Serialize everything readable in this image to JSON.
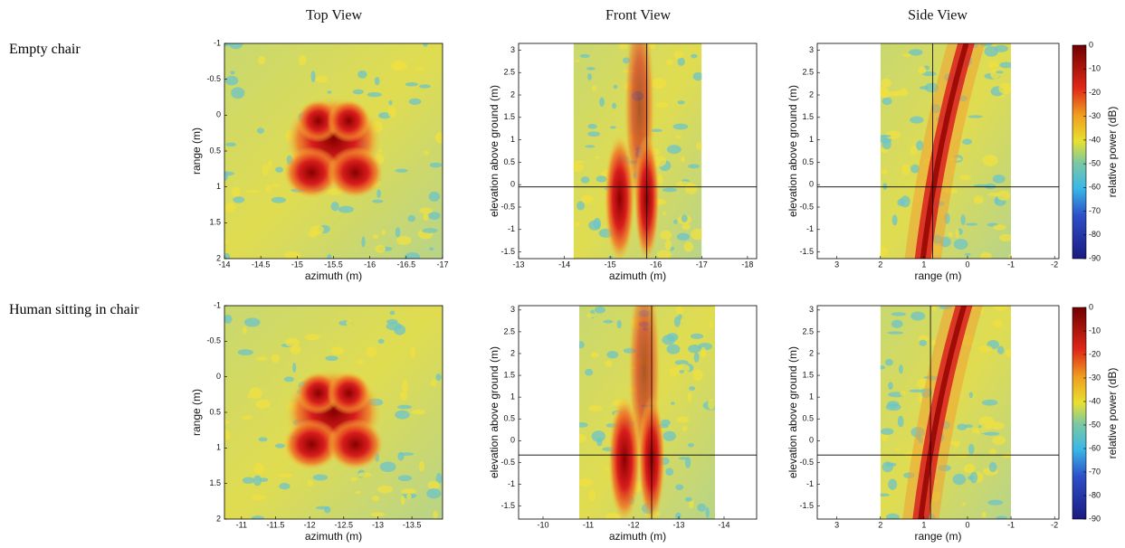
{
  "column_titles": [
    "Top View",
    "Front View",
    "Side View"
  ],
  "row_labels": [
    "Empty chair",
    "Human sitting in chair"
  ],
  "chart_data": [
    {
      "type": "heatmap",
      "xlabel": "azimuth (m)",
      "ylabel": "range (m)",
      "xlim": [
        -14,
        -17
      ],
      "xticks": [
        -14,
        -14.5,
        -15,
        -15.5,
        -16,
        -16.5,
        -17
      ],
      "ylim": [
        2,
        -1
      ],
      "yticks": [
        -1,
        -0.5,
        0,
        0.5,
        1,
        1.5,
        2
      ],
      "image_x": [
        -14,
        -17
      ]
    },
    {
      "type": "heatmap",
      "xlabel": "azimuth (m)",
      "ylabel": "elevation above ground (m)",
      "xlim": [
        -13,
        -18.2
      ],
      "xticks": [
        -13,
        -14,
        -15,
        -16,
        -17,
        -18
      ],
      "ylim": [
        -1.65,
        3.15
      ],
      "yticks": [
        -1.5,
        -1,
        -0.5,
        0,
        0.5,
        1,
        1.5,
        2,
        2.5,
        3
      ],
      "image_x": [
        -14.2,
        -17
      ],
      "crosshair": {
        "x": -15.8,
        "y": -0.05
      }
    },
    {
      "type": "heatmap",
      "xlabel": "range (m)",
      "ylabel": "elevation above ground (m)",
      "xlim": [
        3.45,
        -2.1
      ],
      "xticks": [
        3,
        2,
        1,
        0,
        -1,
        -2
      ],
      "ylim": [
        -1.65,
        3.15
      ],
      "yticks": [
        -1.5,
        -1,
        -0.5,
        0,
        0.5,
        1,
        1.5,
        2,
        2.5,
        3
      ],
      "image_x": [
        2,
        -1
      ],
      "crosshair": {
        "x": 0.8,
        "y": -0.05
      }
    },
    {
      "type": "heatmap",
      "xlabel": "azimuth (m)",
      "ylabel": "range (m)",
      "xlim": [
        -10.75,
        -13.95
      ],
      "xticks": [
        -11,
        -11.5,
        -12,
        -12.5,
        -13,
        -13.5
      ],
      "ylim": [
        2,
        -1
      ],
      "yticks": [
        -1,
        -0.5,
        0,
        0.5,
        1,
        1.5,
        2
      ],
      "image_x": [
        -10.75,
        -13.95
      ]
    },
    {
      "type": "heatmap",
      "xlabel": "azimuth (m)",
      "ylabel": "elevation above ground (m)",
      "xlim": [
        -9.46,
        -14.72
      ],
      "xticks": [
        -10,
        -11,
        -12,
        -13,
        -14
      ],
      "ylim": [
        -1.8,
        3.1
      ],
      "yticks": [
        -1.5,
        -1,
        -0.5,
        0,
        0.5,
        1,
        1.5,
        2,
        2.5,
        3
      ],
      "image_x": [
        -10.8,
        -13.8
      ],
      "crosshair": {
        "x": -12.4,
        "y": -0.33
      }
    },
    {
      "type": "heatmap",
      "xlabel": "range (m)",
      "ylabel": "elevation above ground (m)",
      "xlim": [
        3.45,
        -2.1
      ],
      "xticks": [
        3,
        2,
        1,
        0,
        -1,
        -2
      ],
      "ylim": [
        -1.8,
        3.1
      ],
      "yticks": [
        -1.5,
        -1,
        -0.5,
        0,
        0.5,
        1,
        1.5,
        2,
        2.5,
        3
      ],
      "image_x": [
        2,
        -1
      ],
      "crosshair": {
        "x": 0.85,
        "y": -0.33
      }
    }
  ],
  "colorbars": [
    {
      "label": "relative power (dB)",
      "clim": [
        -90,
        0
      ],
      "ticks": [
        0,
        -10,
        -20,
        -30,
        -40,
        -50,
        -60,
        -70,
        -80,
        -90
      ]
    },
    {
      "label": "relative power (dB)",
      "clim": [
        -90,
        0
      ],
      "ticks": [
        0,
        -10,
        -20,
        -30,
        -40,
        -50,
        -60,
        -70,
        -80,
        -90
      ]
    }
  ]
}
